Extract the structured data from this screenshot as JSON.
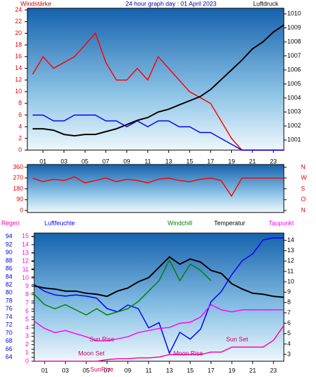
{
  "chart_data": [
    {
      "type": "line",
      "title": "24 hour graph day : 01 April 2023",
      "ylabel": "Windstärke",
      "y2label": "Luftdruck",
      "xlim": [
        -0.5,
        24
      ],
      "xticks": [
        {
          "value": 1,
          "label": "01"
        },
        {
          "value": 3,
          "label": "03"
        },
        {
          "value": 5,
          "label": "05"
        },
        {
          "value": 7,
          "label": "07"
        },
        {
          "value": 9,
          "label": "09"
        },
        11,
        13,
        15,
        17,
        19,
        21,
        23
      ],
      "ylim": [
        0,
        24.3
      ],
      "yticks": [
        0,
        2,
        4,
        6,
        8,
        10,
        12,
        14,
        16,
        18,
        20,
        22,
        24
      ],
      "ytick_color": "#e00000",
      "y2lim": [
        1000.28,
        1010.4
      ],
      "y2ticks": [
        1001,
        1002,
        1003,
        1004,
        1005,
        1006,
        1007,
        1008,
        1009,
        1010
      ],
      "y2tick_color": "#000000",
      "x": [
        0,
        1,
        2,
        3,
        4,
        5,
        6,
        7,
        8,
        9,
        10,
        11,
        12,
        13,
        14,
        15,
        16,
        17,
        18,
        19,
        20,
        21,
        22,
        23,
        24
      ],
      "series": [
        {
          "color": "#ff0000",
          "values": [
            13,
            16,
            14,
            15,
            16,
            18,
            20,
            15,
            12,
            12,
            14,
            12,
            16,
            14,
            12,
            10,
            9,
            8,
            5,
            2,
            0,
            0,
            0,
            0,
            0
          ]
        },
        {
          "color": "#0000ff",
          "values": [
            6,
            6,
            5,
            5,
            6,
            6,
            6,
            5,
            5,
            4,
            5,
            4,
            5,
            5,
            4,
            4,
            3,
            3,
            2,
            1,
            0,
            0,
            0,
            0,
            0
          ]
        },
        {
          "color": "#000000",
          "axis": "y2",
          "values": [
            1001.8,
            1001.8,
            1001.7,
            1001.4,
            1001.3,
            1001.4,
            1001.4,
            1001.6,
            1001.8,
            1002.1,
            1002.4,
            1002.6,
            1003.0,
            1003.2,
            1003.5,
            1003.8,
            1004.1,
            1004.6,
            1005.3,
            1006.0,
            1006.7,
            1007.5,
            1008.0,
            1008.7,
            1009.2
          ]
        }
      ]
    },
    {
      "type": "line",
      "xlim": [
        -0.5,
        24
      ],
      "ylim": [
        -17,
        383
      ],
      "yticks": [
        0,
        90,
        180,
        270,
        360
      ],
      "ytick_color": "#e00000",
      "y2lim": [
        -17,
        383
      ],
      "y2ticks": [
        {
          "value": 360,
          "label": "N"
        },
        {
          "value": 270,
          "label": "W"
        },
        {
          "value": 180,
          "label": "S"
        },
        {
          "value": 90,
          "label": "O"
        },
        {
          "value": 0,
          "label": "N"
        }
      ],
      "y2tick_color": "#e00000",
      "x": [
        0,
        1,
        2,
        3,
        4,
        5,
        6,
        7,
        8,
        9,
        10,
        11,
        12,
        13,
        14,
        15,
        16,
        17,
        18,
        19,
        20,
        21,
        22,
        23,
        24
      ],
      "series": [
        {
          "color": "#ff0000",
          "values": [
            270,
            240,
            260,
            250,
            280,
            230,
            250,
            270,
            240,
            260,
            250,
            230,
            260,
            270,
            250,
            240,
            260,
            270,
            250,
            120,
            270,
            270,
            270,
            270,
            270
          ]
        }
      ]
    },
    {
      "type": "line",
      "xlim": [
        0,
        24
      ],
      "xticks": [
        {
          "value": 1,
          "label": "01"
        },
        {
          "value": 3,
          "label": "03"
        },
        {
          "value": 5,
          "label": "05"
        },
        {
          "value": 7,
          "label": "07"
        },
        {
          "value": 9,
          "label": "09"
        },
        11,
        13,
        15,
        17,
        19,
        21,
        23
      ],
      "ylim": [
        63,
        94.9
      ],
      "yticks": [
        64,
        66,
        68,
        70,
        72,
        74,
        76,
        78,
        80,
        82,
        84,
        86,
        88,
        90,
        92,
        94
      ],
      "ytick_color": "#0000cc",
      "y2lim": [
        2.34,
        14.7
      ],
      "y2ticks": [
        3,
        4,
        5,
        6,
        7,
        8,
        9,
        10,
        11,
        12,
        13,
        14
      ],
      "y2tick_color": "#000000",
      "y3lim": [
        0,
        15.4
      ],
      "y3ticks": [
        0,
        1,
        2,
        3,
        4,
        5,
        6,
        7,
        8,
        9,
        10,
        11,
        12,
        13,
        14,
        15
      ],
      "y3tick_color": "#ff00ff",
      "x": [
        0,
        1,
        2,
        3,
        4,
        5,
        6,
        7,
        8,
        9,
        10,
        11,
        12,
        13,
        14,
        15,
        16,
        17,
        18,
        19,
        20,
        21,
        22,
        23,
        24
      ],
      "series": [
        {
          "name": "Regen",
          "color": "#ff00aa",
          "axis": "y3",
          "values": [
            0,
            0,
            0,
            0,
            0,
            0,
            0,
            0.2,
            0.3,
            0.3,
            0.4,
            0.4,
            0.5,
            0.8,
            0.8,
            0.8,
            0.8,
            1.1,
            1.1,
            1.7,
            1.7,
            1.7,
            1.7,
            2.5,
            4.3
          ]
        },
        {
          "name": "Luftfeuchte",
          "color": "#0000ff",
          "values": [
            82.1,
            80.4,
            79.5,
            79.2,
            79.5,
            79.2,
            78.7,
            76.1,
            75.3,
            77.0,
            76.1,
            71.3,
            72.6,
            65.0,
            70.2,
            68.5,
            71.0,
            77.8,
            80.4,
            84.6,
            88.0,
            89.7,
            93.2,
            93.7,
            93.7
          ]
        },
        {
          "name": "Windchill",
          "color": "#008000",
          "axis": "y2",
          "values": [
            8.8,
            7.8,
            7.4,
            7.8,
            7.3,
            6.8,
            7.4,
            6.8,
            7.1,
            7.4,
            8.1,
            9.1,
            10.1,
            12.1,
            10.1,
            11.7,
            11.1,
            10.1,
            null,
            null,
            null,
            null,
            null,
            null,
            null
          ]
        },
        {
          "name": "Temperatur",
          "color": "#000000",
          "axis": "y2",
          "values": [
            9.6,
            9.4,
            9.3,
            9.1,
            9.1,
            8.9,
            8.8,
            8.6,
            9.1,
            9.4,
            10.0,
            10.4,
            11.4,
            12.4,
            11.7,
            12.2,
            11.9,
            11.1,
            10.8,
            9.8,
            9.3,
            8.9,
            8.8,
            8.6,
            8.5
          ]
        },
        {
          "name": "Taupunkt",
          "color": "#ff00ff",
          "axis": "y2",
          "values": [
            6.2,
            5.5,
            5.1,
            5.3,
            5.0,
            4.7,
            4.3,
            4.3,
            4.5,
            4.7,
            5.1,
            5.3,
            5.5,
            5.6,
            6.0,
            6.1,
            6.6,
            7.8,
            7.3,
            7.1,
            7.3,
            7.3,
            7.3,
            7.3,
            7.3
          ]
        }
      ],
      "annotations": [
        {
          "text": "Sun Rise",
          "x": 6.5,
          "y": 4.4
        },
        {
          "text": "Sun Set",
          "x": 19.5,
          "y": 4.4
        },
        {
          "text": "Moon Set",
          "x": 5.5,
          "y": 3.05
        },
        {
          "text": "Moon Rise",
          "x": 14.8,
          "y": 3.05
        },
        {
          "text": "SunRise",
          "x": 6.5,
          "y": 1.5
        }
      ]
    }
  ]
}
